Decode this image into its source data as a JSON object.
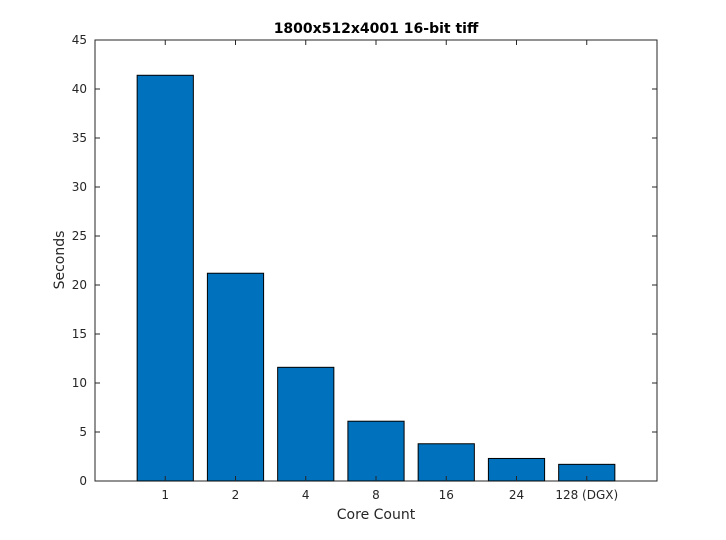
{
  "chart_data": {
    "type": "bar",
    "title": "1800x512x4001 16-bit tiff",
    "xlabel": "Core Count",
    "ylabel": "Seconds",
    "categories": [
      "1",
      "2",
      "4",
      "8",
      "16",
      "24",
      "128 (DGX)"
    ],
    "values": [
      41.4,
      21.2,
      11.6,
      6.1,
      3.8,
      2.3,
      1.7
    ],
    "ylim": [
      0,
      45
    ],
    "yticks": [
      "0",
      "5",
      "10",
      "15",
      "20",
      "25",
      "30",
      "35",
      "40",
      "45"
    ],
    "grid": false,
    "bar_color": "#0072bd"
  }
}
